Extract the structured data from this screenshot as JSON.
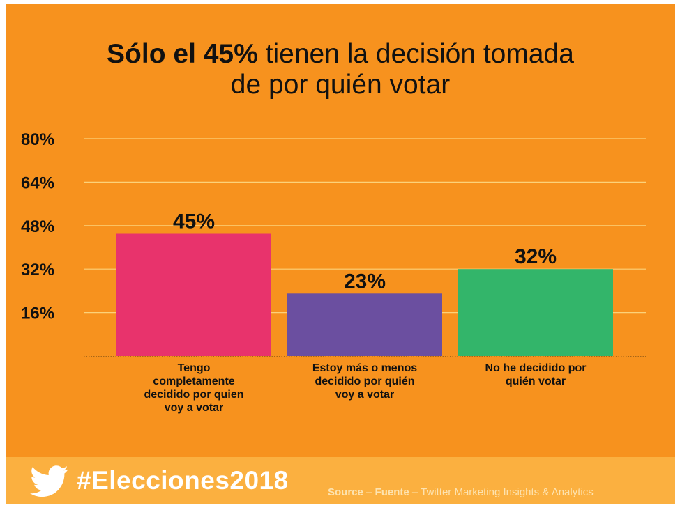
{
  "title": {
    "part1_bold": "Sólo el 45%",
    "part2": " tienen la decisión tomada",
    "line2": "de por quién votar"
  },
  "chart_data": {
    "type": "bar",
    "categories": [
      "Tengo completamente decidido por quien voy a votar",
      "Estoy más o menos decidido por quién voy a votar",
      "No he decidido por quién votar"
    ],
    "category_lines": [
      [
        "Tengo",
        "completamente",
        "decidido por quien",
        "voy a votar"
      ],
      [
        "Estoy más o menos",
        "decidido por quién",
        "voy a votar"
      ],
      [
        "No he decidido por",
        "quién votar"
      ]
    ],
    "values": [
      45,
      23,
      32
    ],
    "value_labels": [
      "45%",
      "23%",
      "32%"
    ],
    "yticks": [
      16,
      32,
      48,
      64,
      80
    ],
    "ytick_labels": [
      "16%",
      "32%",
      "48%",
      "64%",
      "80%"
    ],
    "ylim": [
      0,
      80
    ],
    "grid": true
  },
  "colors": {
    "background": "#f7921e",
    "footer": "#fbb040",
    "gridline": "#fcd27a",
    "bars": [
      "#e8336c",
      "#6b4fa0",
      "#33b56a"
    ]
  },
  "footer": {
    "icon": "twitter-bird-icon",
    "hashtag": "#Elecciones2018",
    "source_word": "Source",
    "sep1": " – ",
    "fuente_word": "Fuente",
    "sep2": " – ",
    "source_rest": "Twitter Marketing Insights & Analytics"
  }
}
